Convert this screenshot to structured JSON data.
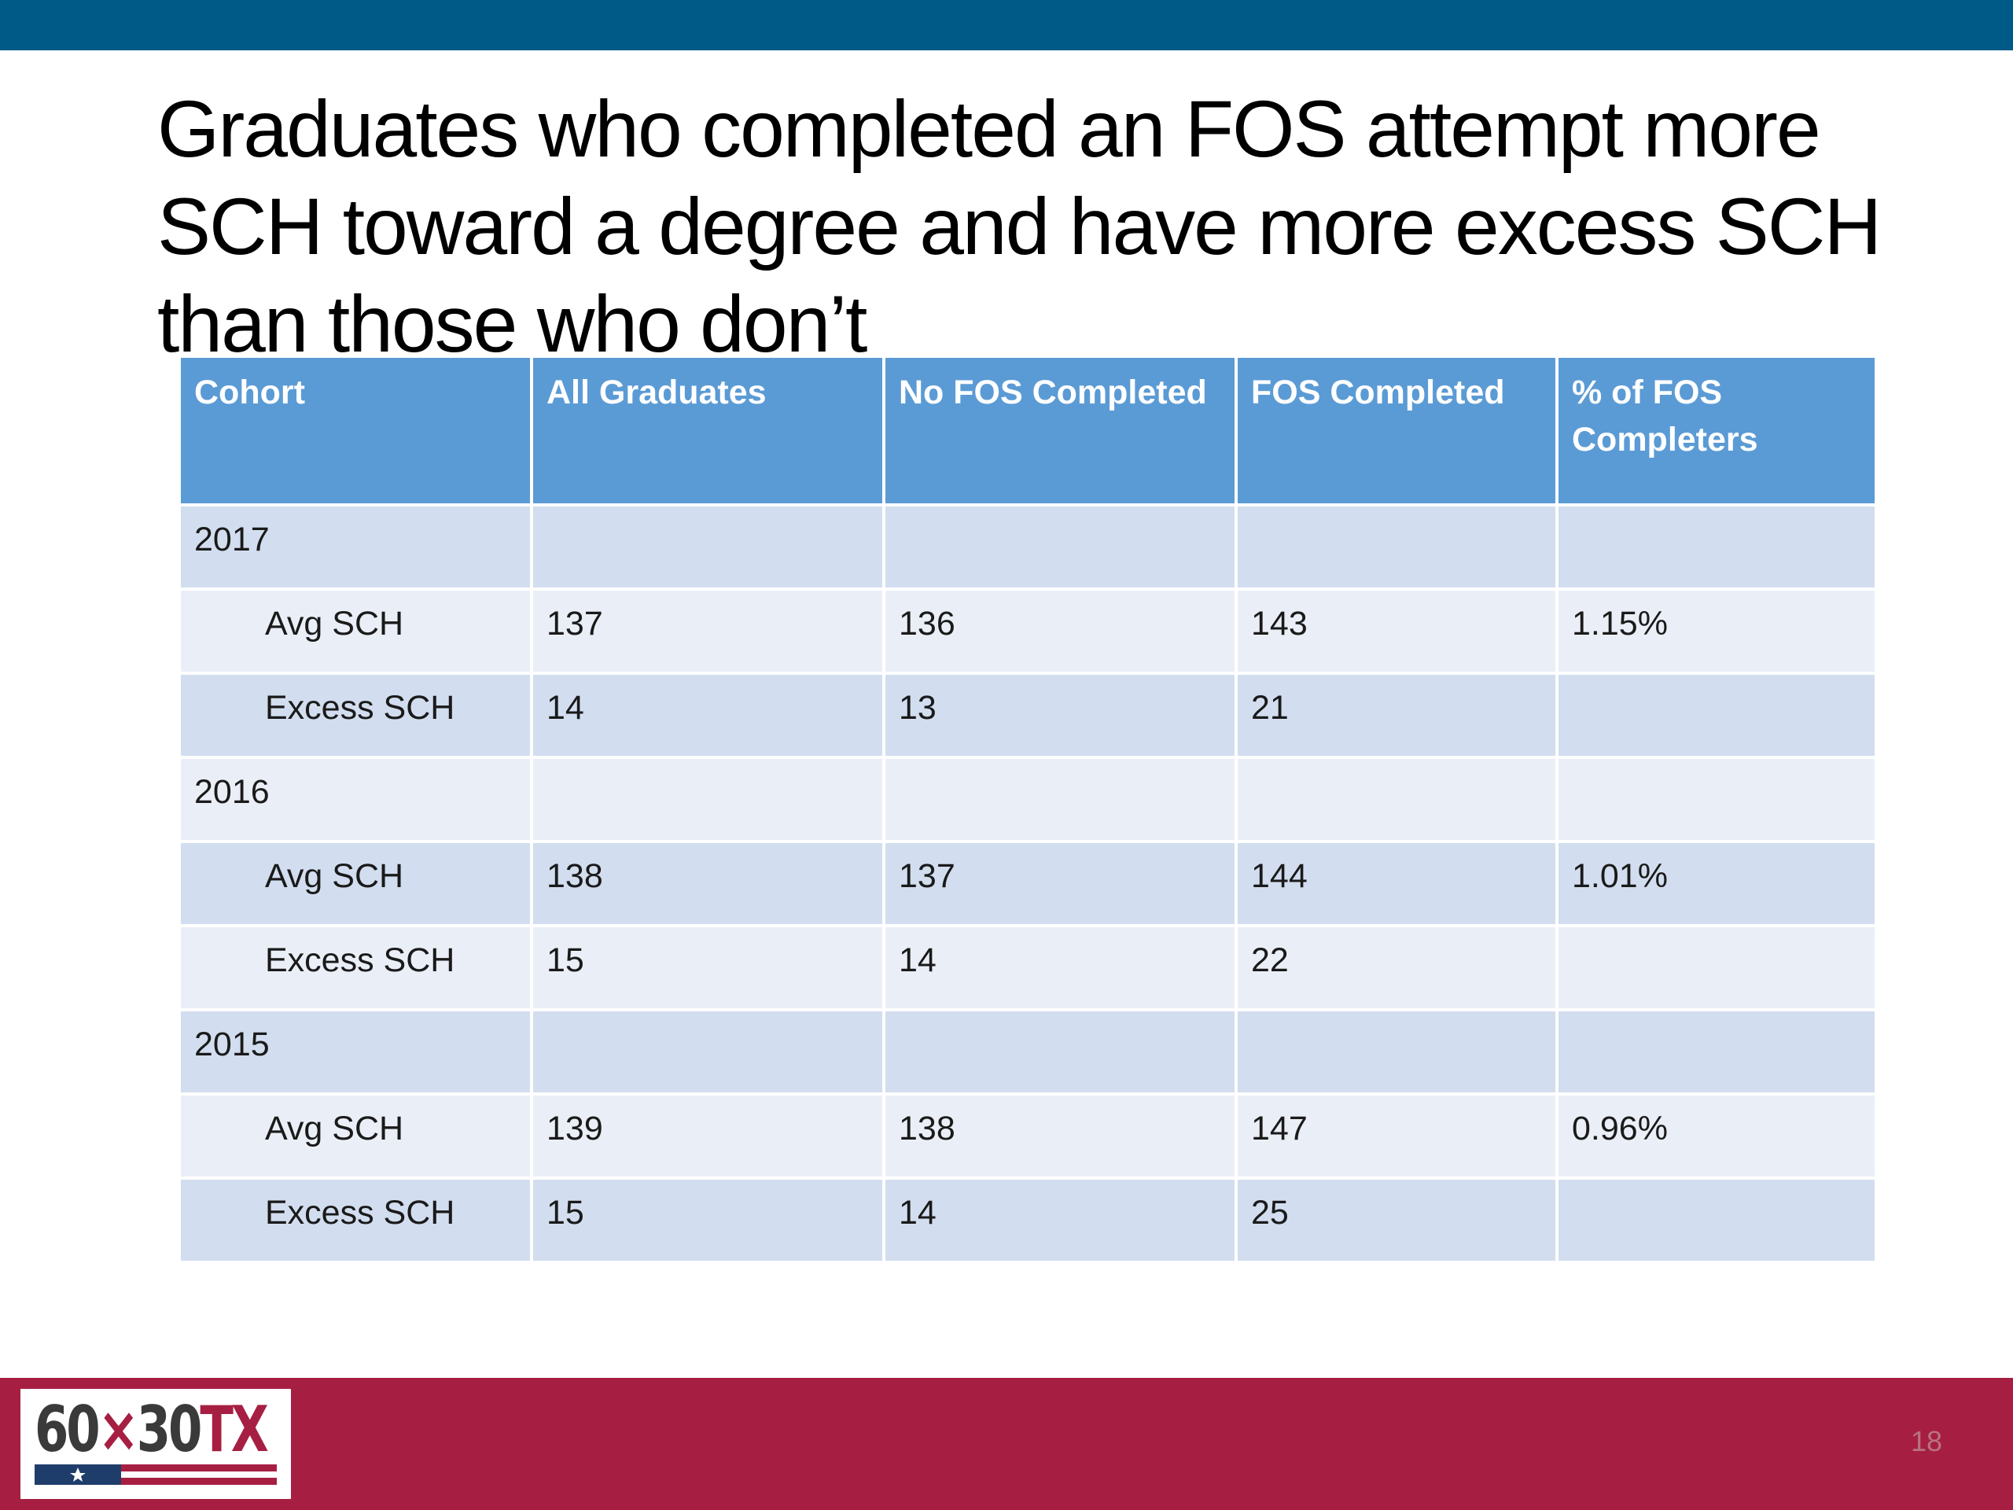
{
  "slide": {
    "title": "Graduates who completed an FOS attempt more SCH toward a degree and have more excess SCH than those who don’t",
    "page_number": "18"
  },
  "table": {
    "headers": [
      "Cohort",
      "All Graduates",
      "No FOS Completed",
      "FOS Completed",
      "% of FOS Completers"
    ],
    "rows": [
      [
        "2017",
        "",
        "",
        "",
        ""
      ],
      [
        "Avg SCH",
        "137",
        "136",
        "143",
        "1.15%"
      ],
      [
        "Excess SCH",
        "14",
        "13",
        "21",
        ""
      ],
      [
        "2016",
        "",
        "",
        "",
        ""
      ],
      [
        "Avg SCH",
        "138",
        "137",
        "144",
        "1.01%"
      ],
      [
        "Excess SCH",
        "15",
        "14",
        "22",
        ""
      ],
      [
        "2015",
        "",
        "",
        "",
        ""
      ],
      [
        "Avg SCH",
        "139",
        "138",
        "147",
        "0.96%"
      ],
      [
        "Excess SCH",
        "15",
        "14",
        "25",
        ""
      ]
    ]
  },
  "logo": {
    "num_left": "60",
    "times": "×",
    "num_right": "30",
    "state": "TX"
  },
  "colors": {
    "top_bar": "#005a87",
    "footer_bar": "#a61f43",
    "header_fill": "#5b9bd5",
    "row_dark": "#d2deef",
    "row_light": "#eaeff7"
  }
}
